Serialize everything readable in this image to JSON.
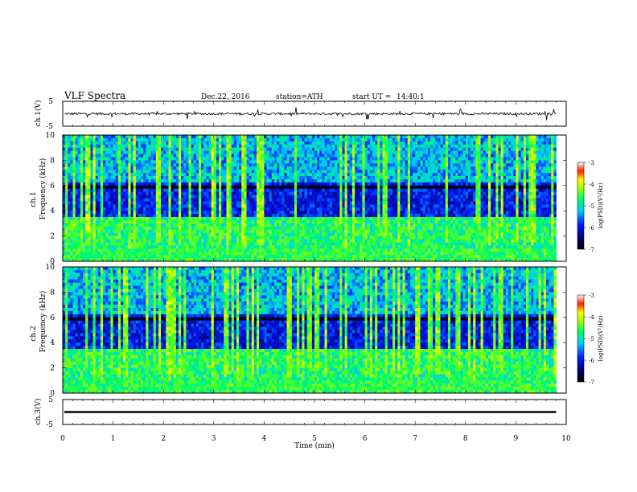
{
  "header": {
    "title": "VLF Spectra",
    "date": "Dec.22, 2016",
    "station": "station=ATH",
    "start_label": "start UT =",
    "start_time": "14:40:1"
  },
  "chart_data": [
    {
      "type": "line",
      "panel": "ch1-waveform",
      "ylabel": "ch.1(V)",
      "ylim": [
        -5,
        5
      ],
      "yticks": [
        "5",
        "-5"
      ],
      "xlim": [
        0,
        10
      ],
      "baseline_value": 0,
      "series": [
        {
          "values": []
        }
      ]
    },
    {
      "type": "heatmap",
      "panel": "ch1-spectrogram",
      "ylabel_channel": "ch.1",
      "ylabel": "Frequency (kHz)",
      "ylim": [
        0,
        10
      ],
      "yticks": [
        "0",
        "2",
        "4",
        "6",
        "8",
        "10"
      ],
      "xlim": [
        0,
        10
      ],
      "data_extent_x": 9.8,
      "colorbar": {
        "label": "log(PSD)(V²/Hz)",
        "range": [
          -7,
          -3
        ],
        "ticks": [
          "-3",
          "-4",
          "-5",
          "-6",
          "-7"
        ]
      }
    },
    {
      "type": "heatmap",
      "panel": "ch2-spectrogram",
      "ylabel_channel": "ch.2",
      "ylabel": "Frequency (kHz)",
      "ylim": [
        0,
        10
      ],
      "yticks": [
        "0",
        "2",
        "4",
        "6",
        "8",
        "10"
      ],
      "xlim": [
        0,
        10
      ],
      "data_extent_x": 9.8,
      "colorbar": {
        "label": "log(PSD)(V²/Hz)",
        "range": [
          -7,
          -3
        ],
        "ticks": [
          "-3",
          "-4",
          "-5",
          "-6",
          "-7"
        ]
      }
    },
    {
      "type": "line",
      "panel": "ch3-waveform",
      "ylabel": "ch.3(V)",
      "ylim": [
        -5,
        5
      ],
      "yticks": [
        "5",
        "-5"
      ],
      "xlim": [
        0,
        10
      ],
      "baseline_value": 0,
      "xlabel": "Time (min)",
      "xticks": [
        "0",
        "1",
        "2",
        "3",
        "4",
        "5",
        "6",
        "7",
        "8",
        "9",
        "10"
      ],
      "series": [
        {
          "values": []
        }
      ]
    }
  ]
}
